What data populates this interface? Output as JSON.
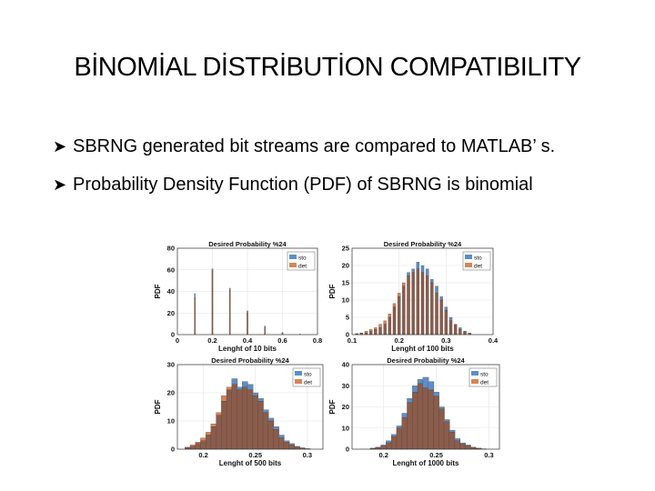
{
  "slide": {
    "title": "BİNOMİAL DİSTRİBUTİON COMPATIBILITY",
    "bullets": [
      "SBRNG generated bit streams are compared to MATLAB’ s.",
      "Probability Density Function (PDF) of SBRNG is binomial"
    ],
    "bullet_icon": "arrow-bullet-icon"
  },
  "colors": {
    "sto": "#5b8fc6",
    "det": "#d98455",
    "overlap": "#8a5c4c"
  },
  "chart_data": [
    {
      "type": "bar",
      "title": "Desired Probability %24",
      "xlabel": "Lenght of  10  bits",
      "ylabel": "PDF",
      "xlim": [
        0,
        0.8
      ],
      "ylim": [
        0,
        80
      ],
      "xticks": [
        0,
        0.2,
        0.4,
        0.6,
        0.8
      ],
      "xtick_labels": [
        "0",
        "0.2",
        "0.4",
        "0.6",
        "0.8"
      ],
      "yticks": [
        0,
        20,
        40,
        60,
        80
      ],
      "legend": [
        "sto",
        "det"
      ],
      "legend_position": "top-right",
      "bin_width": 0.006,
      "x": [
        0.1,
        0.2,
        0.3,
        0.4,
        0.5,
        0.6,
        0.7
      ],
      "series": [
        {
          "name": "sto",
          "values": [
            38,
            61,
            43,
            22,
            8,
            2,
            0.5
          ]
        },
        {
          "name": "det",
          "values": [
            34,
            59,
            41,
            20,
            6,
            1,
            0.3
          ]
        }
      ]
    },
    {
      "type": "bar",
      "title": "Desired Probability %24",
      "xlabel": "Lenght of  100  bits",
      "ylabel": "PDF",
      "xlim": [
        0.1,
        0.4
      ],
      "ylim": [
        0,
        25
      ],
      "xticks": [
        0.1,
        0.2,
        0.3,
        0.4
      ],
      "xtick_labels": [
        "0.1",
        "0.2",
        "0.3",
        "0.4"
      ],
      "yticks": [
        0,
        5,
        10,
        15,
        20,
        25
      ],
      "legend": [
        "sto",
        "det"
      ],
      "legend_position": "top-right",
      "bin_width": 0.006,
      "x": [
        0.11,
        0.12,
        0.13,
        0.14,
        0.15,
        0.16,
        0.17,
        0.18,
        0.19,
        0.2,
        0.21,
        0.22,
        0.23,
        0.24,
        0.25,
        0.26,
        0.27,
        0.28,
        0.29,
        0.3,
        0.31,
        0.32,
        0.33,
        0.34,
        0.35
      ],
      "series": [
        {
          "name": "sto",
          "values": [
            0.3,
            0.5,
            0.5,
            1,
            1.5,
            2,
            3,
            5,
            8,
            11,
            14,
            18,
            19,
            21,
            20,
            19,
            16,
            14,
            11,
            8,
            5,
            3,
            2,
            1,
            0.5
          ]
        },
        {
          "name": "det",
          "values": [
            0.2,
            0.4,
            1,
            1.5,
            2,
            3,
            4,
            6,
            9,
            12,
            15,
            17,
            18,
            19,
            18,
            17,
            15,
            12,
            10,
            7,
            4,
            3,
            1.5,
            0.8,
            0.3
          ]
        }
      ]
    },
    {
      "type": "bar",
      "title": "Desired Probability %24",
      "xlabel": "Lenght of  500  bits",
      "ylabel": "PDF",
      "xlim": [
        0.175,
        0.315
      ],
      "ylim": [
        0,
        30
      ],
      "xticks": [
        0.2,
        0.25,
        0.3
      ],
      "xtick_labels": [
        "0.2",
        "0.25",
        "0.3"
      ],
      "yticks": [
        0,
        10,
        20,
        30
      ],
      "legend": [
        "sto",
        "det"
      ],
      "legend_position": "top-right",
      "bin_width": 0.0055,
      "x": [
        0.185,
        0.19,
        0.195,
        0.2,
        0.205,
        0.21,
        0.215,
        0.22,
        0.225,
        0.23,
        0.235,
        0.24,
        0.245,
        0.25,
        0.255,
        0.26,
        0.265,
        0.27,
        0.275,
        0.28,
        0.285,
        0.29,
        0.295,
        0.3
      ],
      "series": [
        {
          "name": "sto",
          "values": [
            0.5,
            1,
            2,
            3,
            5,
            8,
            12,
            17,
            21,
            25,
            22,
            24,
            23,
            20,
            18,
            14,
            11,
            8,
            5,
            3,
            2,
            1,
            0.5,
            0.2
          ]
        },
        {
          "name": "det",
          "values": [
            0.7,
            1.5,
            2.5,
            4,
            6,
            9,
            13,
            19,
            22,
            23,
            21,
            22,
            21,
            19,
            17,
            13,
            10,
            7,
            4,
            2.5,
            1.5,
            0.8,
            0.4,
            0.1
          ]
        }
      ]
    },
    {
      "type": "bar",
      "title": "Desired Probability %24",
      "xlabel": "Lenght of  1000  bits",
      "ylabel": "PDF",
      "xlim": [
        0.17,
        0.31
      ],
      "ylim": [
        0,
        40
      ],
      "xticks": [
        0.2,
        0.25,
        0.3
      ],
      "xtick_labels": [
        "0.2",
        "0.25",
        "0.3"
      ],
      "yticks": [
        0,
        10,
        20,
        30,
        40
      ],
      "legend": [
        "sto",
        "det"
      ],
      "legend_position": "top-right",
      "bin_width": 0.0055,
      "x": [
        0.19,
        0.195,
        0.2,
        0.205,
        0.21,
        0.215,
        0.22,
        0.225,
        0.23,
        0.235,
        0.24,
        0.245,
        0.25,
        0.255,
        0.26,
        0.265,
        0.27,
        0.275,
        0.28,
        0.285,
        0.29,
        0.295
      ],
      "series": [
        {
          "name": "sto",
          "values": [
            0.5,
            1,
            2,
            4,
            7,
            11,
            17,
            24,
            30,
            33,
            34,
            32,
            27,
            20,
            14,
            9,
            5,
            3,
            2,
            1,
            0.5,
            0.2
          ]
        },
        {
          "name": "det",
          "values": [
            0.3,
            0.8,
            1.5,
            3,
            6,
            10,
            15,
            22,
            27,
            31,
            29,
            28,
            25,
            19,
            13,
            8,
            4,
            2.5,
            1.5,
            0.8,
            0.3,
            0.1
          ]
        }
      ]
    }
  ]
}
